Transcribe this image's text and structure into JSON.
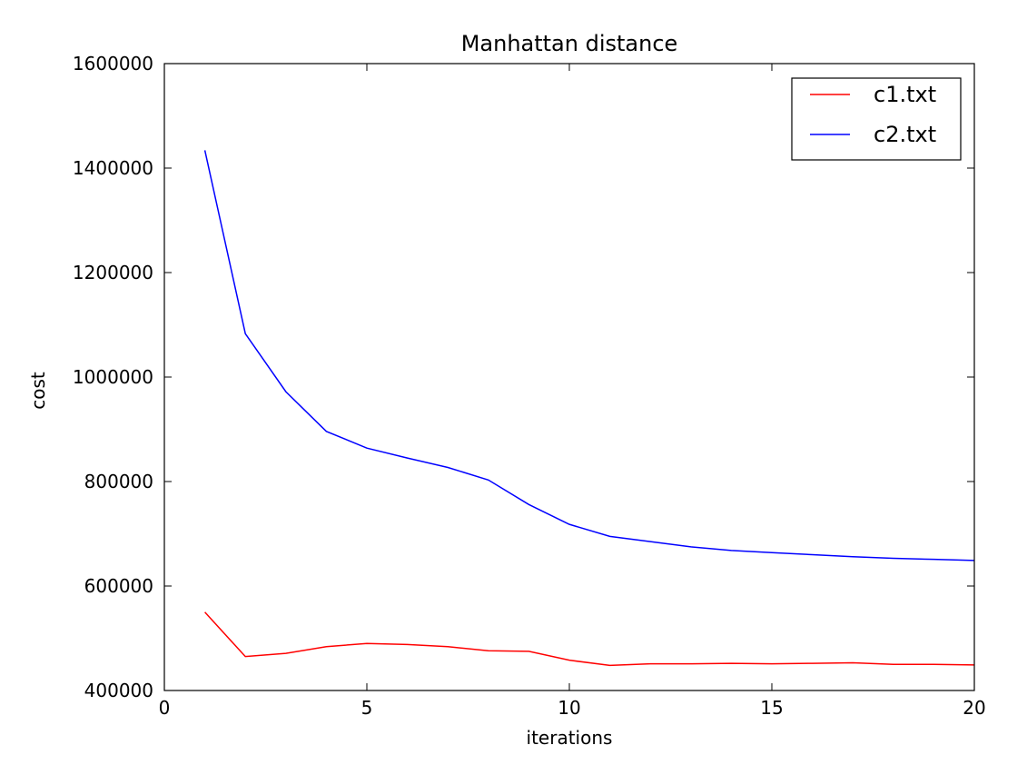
{
  "chart_data": {
    "type": "line",
    "title": "Manhattan distance",
    "xlabel": "iterations",
    "ylabel": "cost",
    "xlim": [
      0,
      20
    ],
    "ylim": [
      400000,
      1600000
    ],
    "xticks": [
      0,
      5,
      10,
      15,
      20
    ],
    "yticks": [
      400000,
      600000,
      800000,
      1000000,
      1200000,
      1400000,
      1600000
    ],
    "grid": false,
    "legend_position": "top-right",
    "x": [
      1,
      2,
      3,
      4,
      5,
      6,
      7,
      8,
      9,
      10,
      11,
      12,
      13,
      14,
      15,
      16,
      17,
      18,
      19,
      20
    ],
    "series": [
      {
        "name": "c1.txt",
        "color": "#ff0000",
        "values": [
          550000,
          465000,
          471000,
          484000,
          490000,
          488000,
          484000,
          476000,
          475000,
          458000,
          448000,
          451000,
          451000,
          452000,
          451000,
          452000,
          453000,
          450000,
          450000,
          449000
        ]
      },
      {
        "name": "c2.txt",
        "color": "#0000ff",
        "values": [
          1434000,
          1083000,
          972000,
          896000,
          864000,
          845000,
          827000,
          803000,
          756000,
          718000,
          695000,
          685000,
          675000,
          668000,
          664000,
          660000,
          656000,
          653000,
          651000,
          649000
        ]
      }
    ]
  }
}
